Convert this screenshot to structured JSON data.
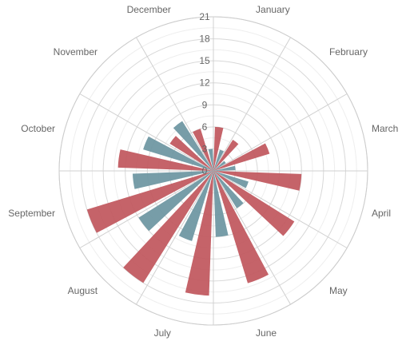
{
  "chart_data": {
    "type": "polar-bar",
    "categories": [
      "January",
      "February",
      "March",
      "April",
      "May",
      "June",
      "July",
      "August",
      "September",
      "October",
      "November",
      "December"
    ],
    "series": [
      {
        "color": "#c1575e",
        "values": [
          6,
          5,
          8,
          12,
          13,
          16,
          17,
          18,
          18,
          13,
          7,
          6
        ]
      },
      {
        "color": "#6d96a1",
        "values": [
          3,
          2,
          3,
          5,
          6,
          9,
          10,
          12,
          11,
          10,
          8,
          3
        ]
      }
    ],
    "radial_axis": {
      "min": 0,
      "max": 21,
      "ticks": [
        0,
        3,
        6,
        9,
        12,
        15,
        18,
        21
      ]
    },
    "grid": true
  }
}
